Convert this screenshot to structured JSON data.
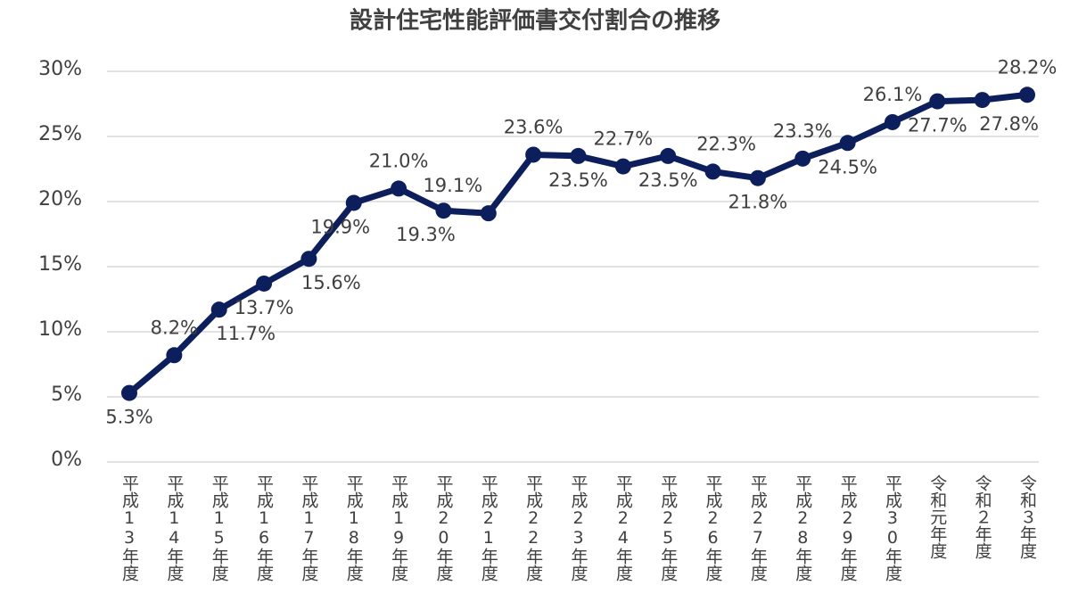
{
  "chart_data": {
    "type": "line",
    "title": "設計住宅性能評価書交付割合の推移",
    "categories": [
      "平成13年度",
      "平成14年度",
      "平成15年度",
      "平成16年度",
      "平成17年度",
      "平成18年度",
      "平成19年度",
      "平成20年度",
      "平成21年度",
      "平成22年度",
      "平成23年度",
      "平成24年度",
      "平成25年度",
      "平成26年度",
      "平成27年度",
      "平成28年度",
      "平成29年度",
      "平成30年度",
      "令和元年度",
      "令和２年度",
      "令和３年度"
    ],
    "values": [
      5.3,
      8.2,
      11.7,
      13.7,
      15.6,
      19.9,
      21.0,
      19.3,
      19.1,
      23.6,
      23.5,
      22.7,
      23.5,
      22.3,
      21.8,
      23.3,
      24.5,
      26.1,
      27.7,
      27.8,
      28.2
    ],
    "value_labels": [
      "5.3%",
      "8.2%",
      "11.7%",
      "13.7%",
      "15.6%",
      "19.9%",
      "21.0%",
      "19.3%",
      "19.1%",
      "23.6%",
      "23.5%",
      "22.7%",
      "23.5%",
      "22.3%",
      "21.8%",
      "23.3%",
      "24.5%",
      "26.1%",
      "27.7%",
      "27.8%",
      "28.2%"
    ],
    "color": "#0c1f5c",
    "ylim": [
      0,
      30
    ],
    "yticks": [
      {
        "value": 0,
        "label": "0%"
      },
      {
        "value": 5,
        "label": "5%"
      },
      {
        "value": 10,
        "label": "10%"
      },
      {
        "value": 15,
        "label": "15%"
      },
      {
        "value": 20,
        "label": "20%"
      },
      {
        "value": 25,
        "label": "25%"
      },
      {
        "value": 30,
        "label": "30%"
      }
    ],
    "grid": true
  }
}
